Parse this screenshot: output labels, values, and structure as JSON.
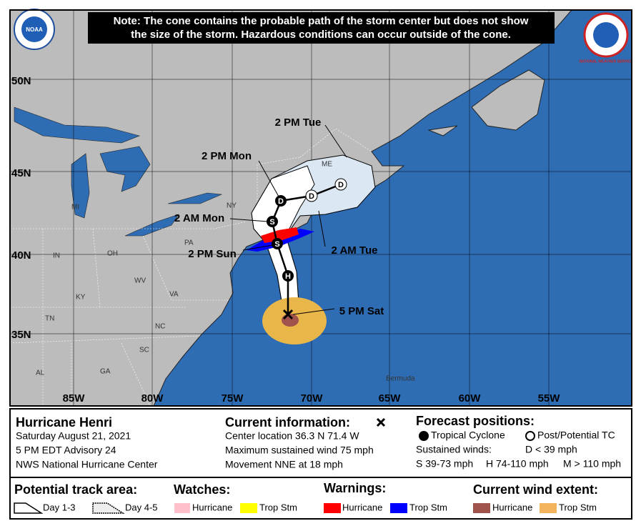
{
  "note": [
    "Note: The cone contains the probable path of the storm center but does not show",
    "the size of the storm. Hazardous conditions can occur outside of the cone."
  ],
  "logos": {
    "noaa": "NOAA",
    "nws": "NATIONAL WEATHER SERVICE"
  },
  "map": {
    "latitude_labels": [
      "50N",
      "45N",
      "40N",
      "35N"
    ],
    "longitude_labels": [
      "85W",
      "80W",
      "75W",
      "70W",
      "65W",
      "60W",
      "55W"
    ],
    "region_labels": [
      "MI",
      "OH",
      "IN",
      "PA",
      "NY",
      "ME",
      "WV",
      "VA",
      "KY",
      "TN",
      "NC",
      "SC",
      "GA",
      "AL",
      "Bermuda"
    ],
    "forecast_labels": [
      "2 PM Tue",
      "2 PM Mon",
      "2 AM Mon",
      "2 PM Sun",
      "2 AM Tue",
      "5 PM Sat"
    ],
    "track_symbols": [
      "H",
      "S",
      "S",
      "D",
      "D",
      "D"
    ]
  },
  "storm": {
    "name": "Hurricane Henri",
    "date": "Saturday August 21, 2021",
    "advisory": "5 PM EDT Advisory 24",
    "source": "NWS National Hurricane Center"
  },
  "current": {
    "title": "Current information:",
    "center": "Center location 36.3 N 71.4 W",
    "wind": "Maximum sustained wind 75 mph",
    "movement": "Movement NNE at 18 mph"
  },
  "forecast": {
    "title": "Forecast positions:",
    "tropical": "Tropical Cyclone",
    "post": "Post/Potential TC",
    "sustained": "Sustained winds:",
    "d": "D < 39 mph",
    "s": "S 39-73 mph",
    "h": "H 74-110 mph",
    "m": "M > 110 mph"
  },
  "legend": {
    "track_title": "Potential track area:",
    "day13": "Day 1-3",
    "day45": "Day 4-5",
    "watches_title": "Watches:",
    "watch_hurricane": "Hurricane",
    "watch_trop": "Trop Stm",
    "warnings_title": "Warnings:",
    "warn_hurricane": "Hurricane",
    "warn_trop": "Trop Stm",
    "wind_title": "Current wind extent:",
    "wind_hurricane": "Hurricane",
    "wind_trop": "Trop Stm"
  }
}
